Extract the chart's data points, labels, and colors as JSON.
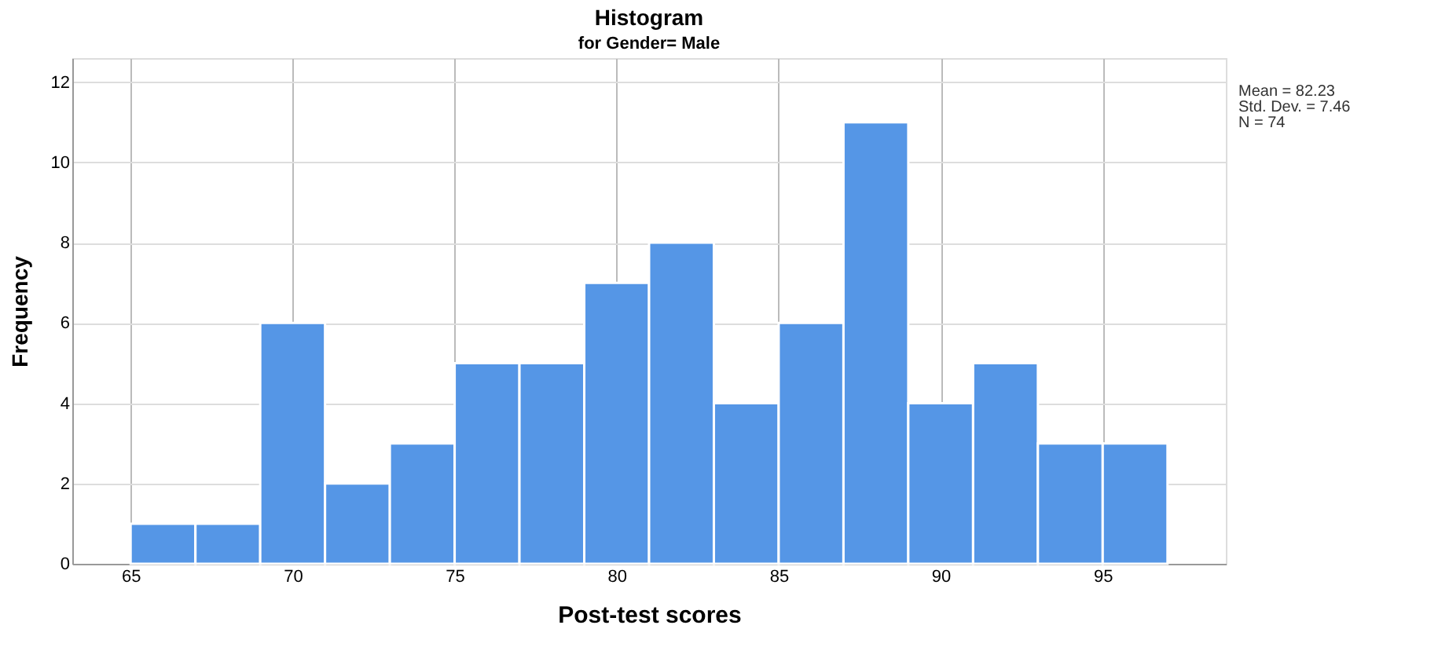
{
  "chart_data": {
    "type": "histogram",
    "title": "Histogram",
    "subtitle": "for Gender= Male",
    "xlabel": "Post-test scores",
    "ylabel": "Frequency",
    "bins": [
      65,
      67,
      69,
      71,
      73,
      75,
      77,
      79,
      81,
      83,
      85,
      87,
      89,
      91,
      93,
      95,
      97
    ],
    "values": [
      1,
      1,
      6,
      2,
      3,
      5,
      5,
      7,
      8,
      4,
      6,
      11,
      4,
      5,
      3,
      3
    ],
    "color": "#5596e6",
    "xlim": [
      63.2,
      98.8
    ],
    "xticks": [
      65,
      70,
      75,
      80,
      85,
      90,
      95
    ],
    "ylim": [
      0,
      12.6
    ],
    "yticks": [
      0,
      2,
      4,
      6,
      8,
      10,
      12
    ],
    "grid": true,
    "annotations": [
      "Mean = 82.23",
      "Std. Dev. = 7.46",
      "N = 74"
    ]
  }
}
